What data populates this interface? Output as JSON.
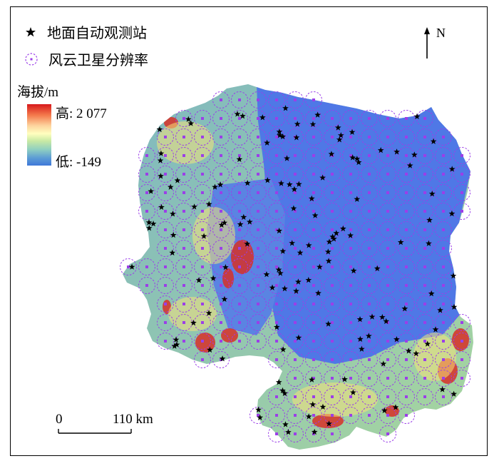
{
  "legend": {
    "stations_label": "地面自动观测站",
    "stations_icon": "star-icon",
    "satellite_label": "风云卫星分辨率",
    "satellite_icon": "dashed-circle-icon"
  },
  "elevation": {
    "title": "海拔/m",
    "high_label": "高: 2 077",
    "low_label": "低: -149",
    "ramp_colors": [
      "#d7191c",
      "#fdae61",
      "#ffffbf",
      "#abdda4",
      "#3f78d8"
    ]
  },
  "north_arrow": {
    "label": "N",
    "icon": "north-arrow-icon"
  },
  "scale_bar": {
    "start": "0",
    "end": "110 km"
  },
  "colors": {
    "lowland": "#4f78e6",
    "highland": "#d73027",
    "circle": "#9b3fe8",
    "station": "#000000"
  }
}
